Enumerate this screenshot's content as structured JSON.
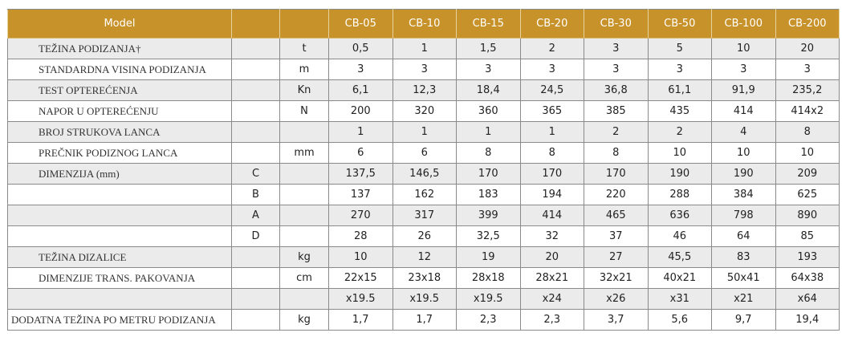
{
  "header": {
    "model_label": "Model",
    "models": [
      "CB-05",
      "CB-10",
      "CB-15",
      "CB-20",
      "CB-30",
      "CB-50",
      "CB-100",
      "CB-200"
    ]
  },
  "rows": [
    {
      "label": "TEŽINA PODIZANJA†",
      "sub": "",
      "unit": "t",
      "values": [
        "0,5",
        "1",
        "1,5",
        "2",
        "3",
        "5",
        "10",
        "20"
      ]
    },
    {
      "label": "STANDARDNA VISINA PODIZANJA",
      "sub": "",
      "unit": "m",
      "values": [
        "3",
        "3",
        "3",
        "3",
        "3",
        "3",
        "3",
        "3"
      ]
    },
    {
      "label": "TEST OPTEREĆENJA",
      "sub": "",
      "unit": "Kn",
      "values": [
        "6,1",
        "12,3",
        "18,4",
        "24,5",
        "36,8",
        "61,1",
        "91,9",
        "235,2"
      ]
    },
    {
      "label": "NAPOR U OPTEREĆENJU",
      "sub": "",
      "unit": "N",
      "values": [
        "200",
        "320",
        "360",
        "365",
        "385",
        "435",
        "414",
        "414x2"
      ]
    },
    {
      "label": "BROJ STRUKOVA LANCA",
      "sub": "",
      "unit": "",
      "values": [
        "1",
        "1",
        "1",
        "1",
        "2",
        "2",
        "4",
        "8"
      ]
    },
    {
      "label": "PREČNIK PODIZNOG LANCA",
      "sub": "",
      "unit": "mm",
      "values": [
        "6",
        "6",
        "8",
        "8",
        "8",
        "10",
        "10",
        "10"
      ]
    },
    {
      "label": "DIMENZIJA (mm)",
      "sub": "C",
      "unit": "",
      "values": [
        "137,5",
        "146,5",
        "170",
        "170",
        "170",
        "190",
        "190",
        "209"
      ]
    },
    {
      "label": "",
      "sub": "B",
      "unit": "",
      "values": [
        "137",
        "162",
        "183",
        "194",
        "220",
        "288",
        "384",
        "625"
      ]
    },
    {
      "label": "",
      "sub": "A",
      "unit": "",
      "values": [
        "270",
        "317",
        "399",
        "414",
        "465",
        "636",
        "798",
        "890"
      ]
    },
    {
      "label": "",
      "sub": "D",
      "unit": "",
      "values": [
        "28",
        "26",
        "32,5",
        "32",
        "37",
        "46",
        "64",
        "85"
      ]
    },
    {
      "label": "TEŽINA DIZALICE",
      "sub": "",
      "unit": "kg",
      "values": [
        "10",
        "12",
        "19",
        "20",
        "27",
        "45,5",
        "83",
        "193"
      ]
    },
    {
      "label": "DIMENZIJE TRANS. PAKOVANJA",
      "sub": "",
      "unit": "cm",
      "values": [
        "22x15",
        "23x18",
        "28x18",
        "28x21",
        "32x21",
        "40x21",
        "50x41",
        "64x38"
      ]
    },
    {
      "label": "",
      "sub": "",
      "unit": "",
      "values": [
        "x19.5",
        "x19.5",
        "x19.5",
        "x24",
        "x26",
        "x31",
        "x21",
        "x64"
      ]
    },
    {
      "label": "DODATNA TEŽINA PO METRU PODIZANJA",
      "sub": "",
      "unit": "kg",
      "values": [
        "1,7",
        "1,7",
        "2,3",
        "2,3",
        "3,7",
        "5,6",
        "9,7",
        "19,4"
      ]
    }
  ]
}
